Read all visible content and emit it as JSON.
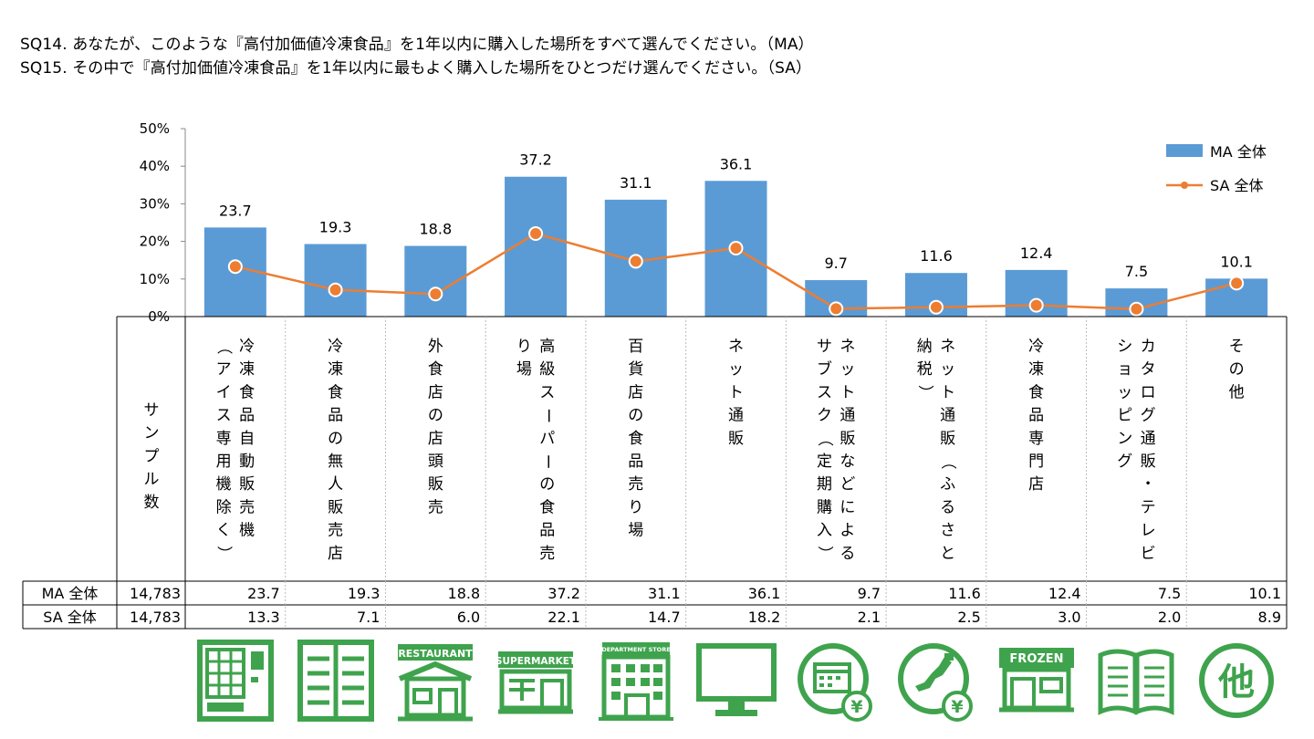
{
  "header": {
    "q1": "SQ14. あなたが、このような『高付加価値冷凍食品』を1年以内に購入した場所をすべて選んでください。（MA）",
    "q2": "SQ15. その中で『高付加価値冷凍食品』を1年以内に最もよく購入した場所をひとつだけ選んでください。（SA）"
  },
  "chart_data": {
    "type": "bar",
    "categories": [
      "冷凍食品自動販売機（アイス専用機除く）",
      "冷凍食品の無人販売店",
      "外食店の店頭販売",
      "高級スーパーの食品売り場",
      "百貨店の食品売り場",
      "ネット通販",
      "ネット通販などによるサブスク（定期購入）",
      "ネット通販（ふるさと納税）",
      "冷凍食品専門店",
      "カタログ通販・テレビショッピング",
      "その他"
    ],
    "category_columns": [
      [
        "冷凍食品自動販売機",
        "（アイス専用機除く）"
      ],
      [
        "冷凍食品の無人販売店"
      ],
      [
        "外食店の店頭販売"
      ],
      [
        "高級スーパーの食品売",
        "り場"
      ],
      [
        "百貨店の食品売り場"
      ],
      [
        "ネット通販"
      ],
      [
        "ネット通販などによる",
        "サブスク（定期購入）"
      ],
      [
        "ネット通販（ふるさと",
        "納税）"
      ],
      [
        "冷凍食品専門店"
      ],
      [
        "カタログ通販・テレビ",
        "ショッピング"
      ],
      [
        "その他"
      ]
    ],
    "series": [
      {
        "name": "MA 全体",
        "kind": "bar",
        "color": "#5b9bd5",
        "values": [
          23.7,
          19.3,
          18.8,
          37.2,
          31.1,
          36.1,
          9.7,
          11.6,
          12.4,
          7.5,
          10.1
        ],
        "labels": [
          "23.7",
          "19.3",
          "18.8",
          "37.2",
          "31.1",
          "36.1",
          "9.7",
          "11.6",
          "12.4",
          "7.5",
          "10.1"
        ]
      },
      {
        "name": "SA 全体",
        "kind": "line",
        "color": "#ed7d31",
        "values": [
          13.3,
          7.1,
          6.0,
          22.1,
          14.7,
          18.2,
          2.1,
          2.5,
          3.0,
          2.0,
          8.9
        ],
        "labels": [
          "13.3",
          "7.1",
          "6.0",
          "22.1",
          "14.7",
          "18.2",
          "2.1",
          "2.5",
          "3.0",
          "2.0",
          "8.9"
        ]
      }
    ],
    "yticks": [
      "0%",
      "10%",
      "20%",
      "30%",
      "40%",
      "50%"
    ],
    "ylim": [
      0,
      50
    ],
    "legend_position": "top-right",
    "table": {
      "sample_header": "サンプル数",
      "rows": [
        {
          "label": "MA 全体",
          "sample": "14,783"
        },
        {
          "label": "SA 全体",
          "sample": "14,783"
        }
      ]
    }
  },
  "icons": {
    "color": "#3fa34d",
    "names": [
      "vending-machine-icon",
      "unmanned-store-icon",
      "restaurant-icon",
      "supermarket-icon",
      "department-store-icon",
      "monitor-icon",
      "subscription-calendar-icon",
      "furusato-japan-icon",
      "frozen-store-icon",
      "catalog-book-icon",
      "other-icon"
    ],
    "texts": {
      "restaurant": "RESTAURANT",
      "supermarket": "SUPERMARKET",
      "department": "DEPARTMENT STORE",
      "frozen": "FROZEN",
      "yen": "¥",
      "other": "他"
    }
  }
}
